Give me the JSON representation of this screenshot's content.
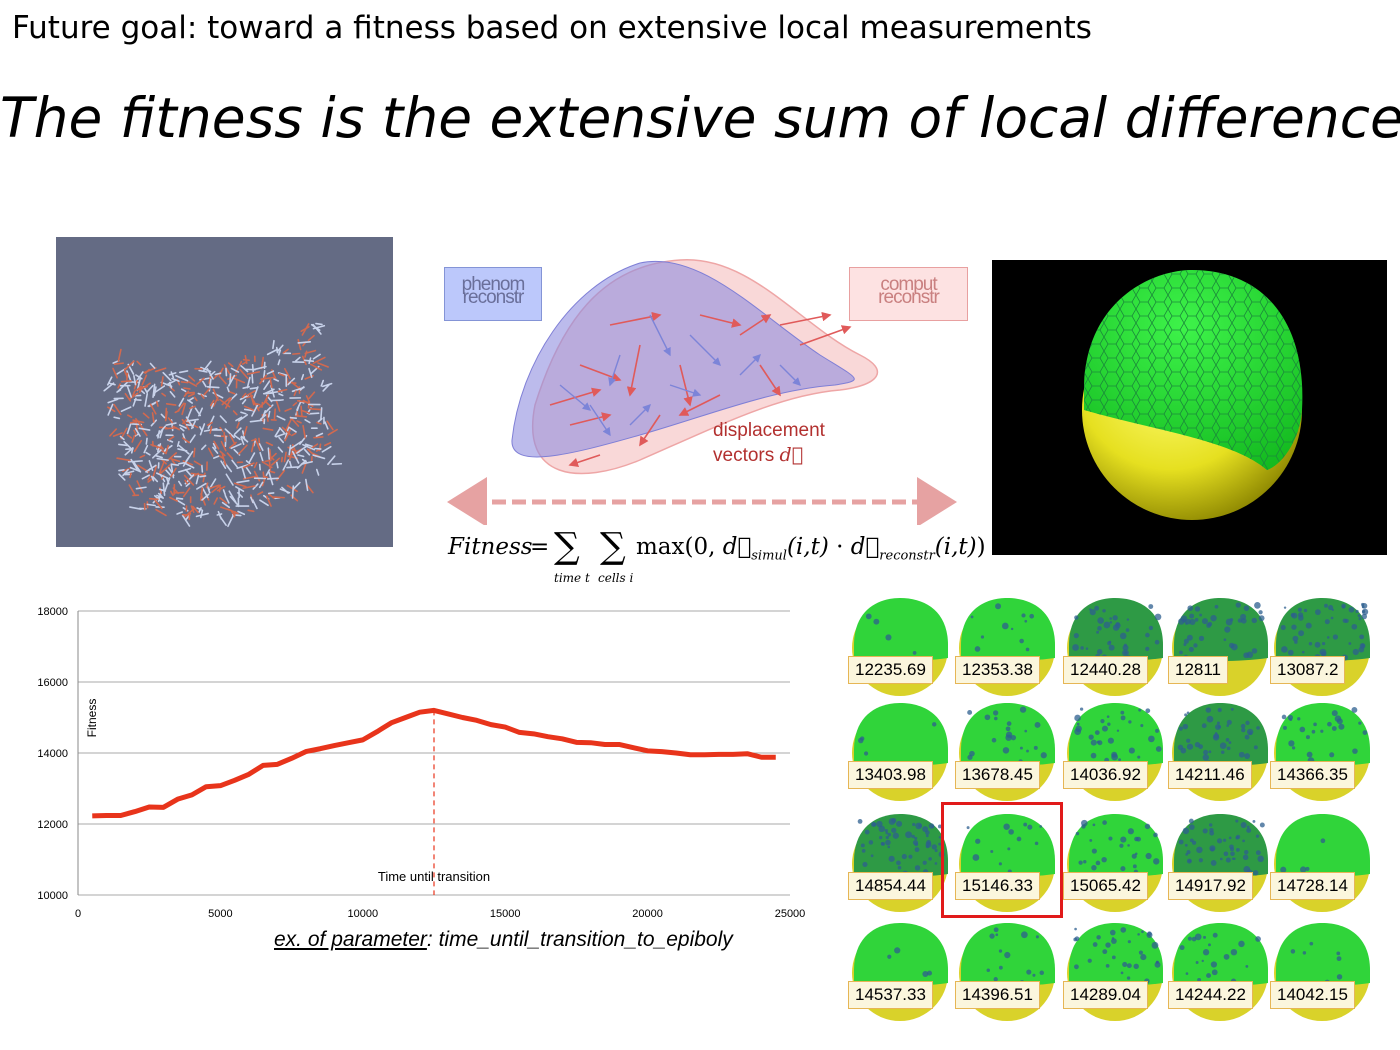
{
  "slide": {
    "top_line": "Future goal: toward a fitness based on extensive local measurements",
    "headline": "The fitness is the extensive sum of local differences"
  },
  "diagram": {
    "phenom_tag": "phenom reconstr",
    "comput_tag": "comput reconstr",
    "displacement_label_1": "displacement",
    "displacement_label_2": "vectors",
    "displacement_symbol": "d⃗",
    "colors": {
      "phenom": "#8f8ee0",
      "comput": "#f4b8b8",
      "arrow_red": "#e05a5a",
      "arrow_blue": "#7c84d8"
    }
  },
  "formula": {
    "lhs": "Fitness",
    "eq": "=",
    "sum1_index": "time t",
    "sum2_index": "cells i",
    "body_prefix": "max(0, ",
    "d1_sub": "simul",
    "args": "(i,t)",
    "dot": " · ",
    "d2_sub": "reconstr",
    "body_suffix": ")"
  },
  "chart_data": {
    "type": "line",
    "ylabel": "Fitness",
    "xlim": [
      0,
      25000
    ],
    "ylim": [
      10000,
      18000
    ],
    "xticks": [
      0,
      5000,
      10000,
      15000,
      20000,
      25000
    ],
    "yticks": [
      10000,
      12000,
      14000,
      16000,
      18000
    ],
    "grid": true,
    "annotation": {
      "text": "Time until transition",
      "x": 12500
    },
    "series": [
      {
        "color": "#e8341b",
        "x": [
          500,
          1000,
          1500,
          2000,
          2500,
          3000,
          3500,
          4000,
          4500,
          5000,
          5500,
          6000,
          6500,
          7000,
          7500,
          8000,
          8500,
          9000,
          9500,
          10000,
          10500,
          11000,
          11500,
          12000,
          12500,
          13000,
          13500,
          14000,
          14500,
          15000,
          15500,
          16000,
          16500,
          17000,
          17500,
          18000,
          18500,
          19000,
          19500,
          20000,
          20500,
          21000,
          21500,
          22000,
          22500,
          23000,
          23500,
          24000,
          24500
        ],
        "y": [
          12230,
          12240,
          12240,
          12350,
          12480,
          12470,
          12700,
          12820,
          13050,
          13080,
          13230,
          13400,
          13650,
          13680,
          13850,
          14040,
          14120,
          14210,
          14290,
          14370,
          14600,
          14850,
          15000,
          15150,
          15200,
          15100,
          15000,
          14920,
          14800,
          14730,
          14580,
          14540,
          14460,
          14400,
          14300,
          14290,
          14240,
          14240,
          14150,
          14060,
          14040,
          14000,
          13950,
          13950,
          13960,
          13960,
          13980,
          13880,
          13880
        ]
      }
    ],
    "caption_underlined": "ex. of parameter",
    "caption_rest": ": time_until_transition_to_epiboly"
  },
  "grid": {
    "values": [
      "12235.69",
      "12353.38",
      "12440.28",
      "12811",
      "13087.2",
      "13403.98",
      "13678.45",
      "14036.92",
      "14211.46",
      "14366.35",
      "14854.44",
      "15146.33",
      "15065.42",
      "14917.92",
      "14728.14",
      "14537.33",
      "14396.51",
      "14289.04",
      "14244.22",
      "14042.15"
    ],
    "blueness": [
      0.05,
      0.15,
      0.55,
      0.6,
      0.75,
      0.05,
      0.3,
      0.45,
      0.6,
      0.35,
      0.85,
      0.2,
      0.4,
      0.7,
      0.05,
      0.05,
      0.2,
      0.45,
      0.3,
      0.1
    ],
    "highlighted_index": 11,
    "highlight_color": "#e11a1a"
  }
}
